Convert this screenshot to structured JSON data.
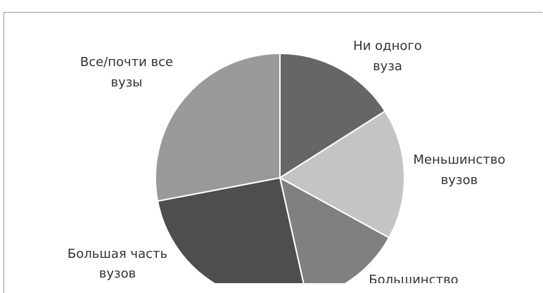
{
  "chart_data": {
    "type": "pie",
    "title": "",
    "legend": "none",
    "slices": [
      {
        "label_lines": [
          "Ни одного",
          "вуза"
        ],
        "value": 16,
        "color": "#666666"
      },
      {
        "label_lines": [
          "Меньшинство",
          "вузов"
        ],
        "value": 17,
        "color": "#c4c4c4"
      },
      {
        "label_lines": [
          "Большинство",
          ""
        ],
        "value": 13.5,
        "color": "#808080"
      },
      {
        "label_lines": [
          "Большая часть",
          "вузов"
        ],
        "value": 25.5,
        "color": "#4e4e4e"
      },
      {
        "label_lines": [
          "Все/почти все",
          "вузы"
        ],
        "value": 28,
        "color": "#999999"
      }
    ]
  }
}
